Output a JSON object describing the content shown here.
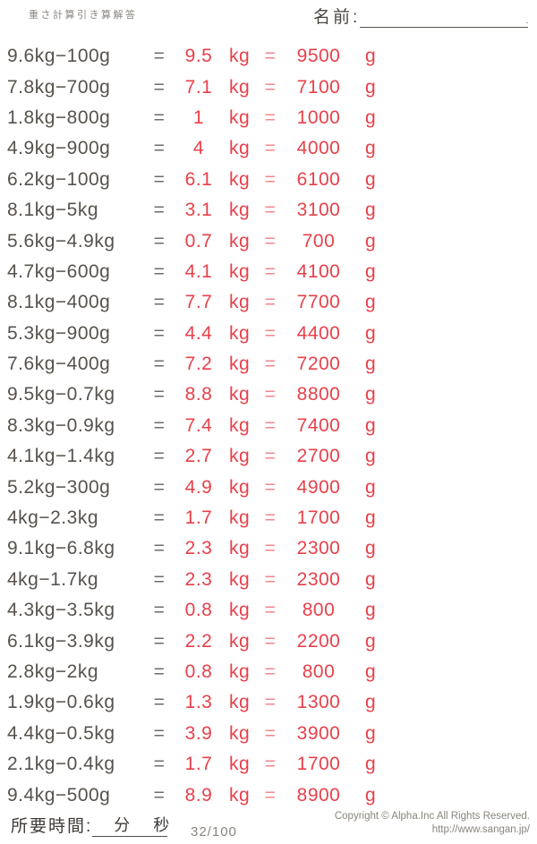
{
  "page": {
    "title": "重さ計算引き算解答",
    "name_label": "名前:",
    "name_line_end": "."
  },
  "labels": {
    "equals": "=",
    "kg_unit": "kg",
    "g_unit": "g"
  },
  "problems": [
    {
      "expression": "9.6kg−100g",
      "kg": "9.5",
      "g": "9500"
    },
    {
      "expression": "7.8kg−700g",
      "kg": "7.1",
      "g": "7100"
    },
    {
      "expression": "1.8kg−800g",
      "kg": "1",
      "g": "1000"
    },
    {
      "expression": "4.9kg−900g",
      "kg": "4",
      "g": "4000"
    },
    {
      "expression": "6.2kg−100g",
      "kg": "6.1",
      "g": "6100"
    },
    {
      "expression": "8.1kg−5kg",
      "kg": "3.1",
      "g": "3100"
    },
    {
      "expression": "5.6kg−4.9kg",
      "kg": "0.7",
      "g": "700"
    },
    {
      "expression": "4.7kg−600g",
      "kg": "4.1",
      "g": "4100"
    },
    {
      "expression": "8.1kg−400g",
      "kg": "7.7",
      "g": "7700"
    },
    {
      "expression": "5.3kg−900g",
      "kg": "4.4",
      "g": "4400"
    },
    {
      "expression": "7.6kg−400g",
      "kg": "7.2",
      "g": "7200"
    },
    {
      "expression": "9.5kg−0.7kg",
      "kg": "8.8",
      "g": "8800"
    },
    {
      "expression": "8.3kg−0.9kg",
      "kg": "7.4",
      "g": "7400"
    },
    {
      "expression": "4.1kg−1.4kg",
      "kg": "2.7",
      "g": "2700"
    },
    {
      "expression": "5.2kg−300g",
      "kg": "4.9",
      "g": "4900"
    },
    {
      "expression": "4kg−2.3kg",
      "kg": "1.7",
      "g": "1700"
    },
    {
      "expression": "9.1kg−6.8kg",
      "kg": "2.3",
      "g": "2300"
    },
    {
      "expression": "4kg−1.7kg",
      "kg": "2.3",
      "g": "2300"
    },
    {
      "expression": "4.3kg−3.5kg",
      "kg": "0.8",
      "g": "800"
    },
    {
      "expression": "6.1kg−3.9kg",
      "kg": "2.2",
      "g": "2200"
    },
    {
      "expression": "2.8kg−2kg",
      "kg": "0.8",
      "g": "800"
    },
    {
      "expression": "1.9kg−0.6kg",
      "kg": "1.3",
      "g": "1300"
    },
    {
      "expression": "4.4kg−0.5kg",
      "kg": "3.9",
      "g": "3900"
    },
    {
      "expression": "2.1kg−0.4kg",
      "kg": "1.7",
      "g": "1700"
    },
    {
      "expression": "9.4kg−500g",
      "kg": "8.9",
      "g": "8900"
    }
  ],
  "footer": {
    "time_label": "所要時間:",
    "minutes_label": "分",
    "seconds_label": "秒",
    "score": "32/100",
    "copyright": "Copyright © Alpha.Inc All Rights Reserved.",
    "url": "http://www.sangan.jp/"
  },
  "colors": {
    "problem_text": "#57524d",
    "answer_red": "#e8404a",
    "equals_pink": "#f2868d",
    "muted_gray": "#8a857f"
  }
}
